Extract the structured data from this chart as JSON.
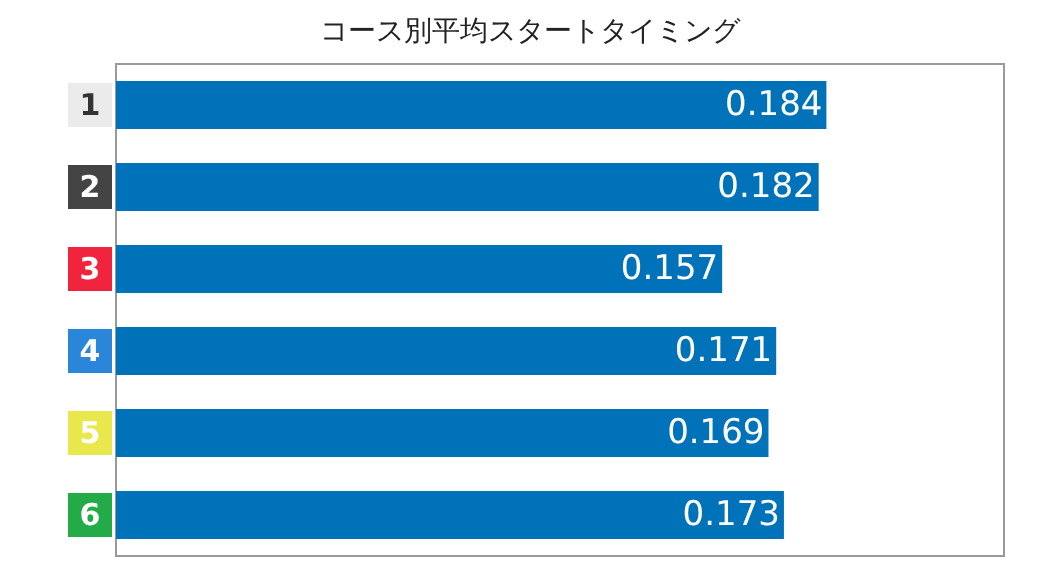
{
  "chart_data": {
    "type": "bar",
    "orientation": "horizontal",
    "title": "コース別平均スタートタイミング",
    "categories": [
      "1",
      "2",
      "3",
      "4",
      "5",
      "6"
    ],
    "values": [
      0.184,
      0.182,
      0.157,
      0.171,
      0.169,
      0.173
    ],
    "color": "#0072b9",
    "xlim": [
      0,
      0.23
    ],
    "data_labels": true
  }
}
